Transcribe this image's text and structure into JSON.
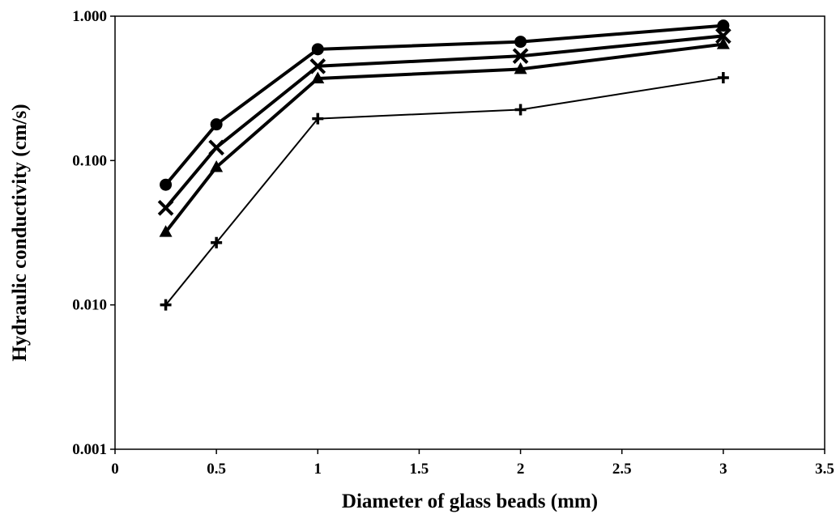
{
  "chart_data": {
    "type": "line",
    "title": "",
    "xlabel": "Diameter of glass beads (mm)",
    "ylabel": "Hydraulic conductivity (cm/s)",
    "xlim": [
      0,
      3.5
    ],
    "ylim": [
      0.001,
      1.0
    ],
    "yscale": "log",
    "grid": false,
    "legend": "none",
    "x_ticks": [
      0,
      0.5,
      1,
      1.5,
      2,
      2.5,
      3,
      3.5
    ],
    "x_tick_labels": [
      "0",
      "0.5",
      "1",
      "1.5",
      "2",
      "2.5",
      "3",
      "3.5"
    ],
    "y_ticks": [
      0.001,
      0.01,
      0.1,
      1.0
    ],
    "y_tick_labels": [
      "0.001",
      "0.010",
      "0.100",
      "1.000"
    ],
    "x": [
      0.25,
      0.5,
      1,
      2,
      3
    ],
    "series": [
      {
        "marker": "circle",
        "line_width": "bold",
        "values": [
          0.068,
          0.178,
          0.59,
          0.665,
          0.86
        ]
      },
      {
        "marker": "x",
        "line_width": "bold",
        "values": [
          0.047,
          0.123,
          0.45,
          0.53,
          0.73
        ]
      },
      {
        "marker": "triangle",
        "line_width": "bold",
        "values": [
          0.032,
          0.09,
          0.37,
          0.43,
          0.64
        ]
      },
      {
        "marker": "plus",
        "line_width": "thin",
        "values": [
          0.01,
          0.027,
          0.195,
          0.225,
          0.375
        ]
      }
    ],
    "color": "#000000"
  }
}
